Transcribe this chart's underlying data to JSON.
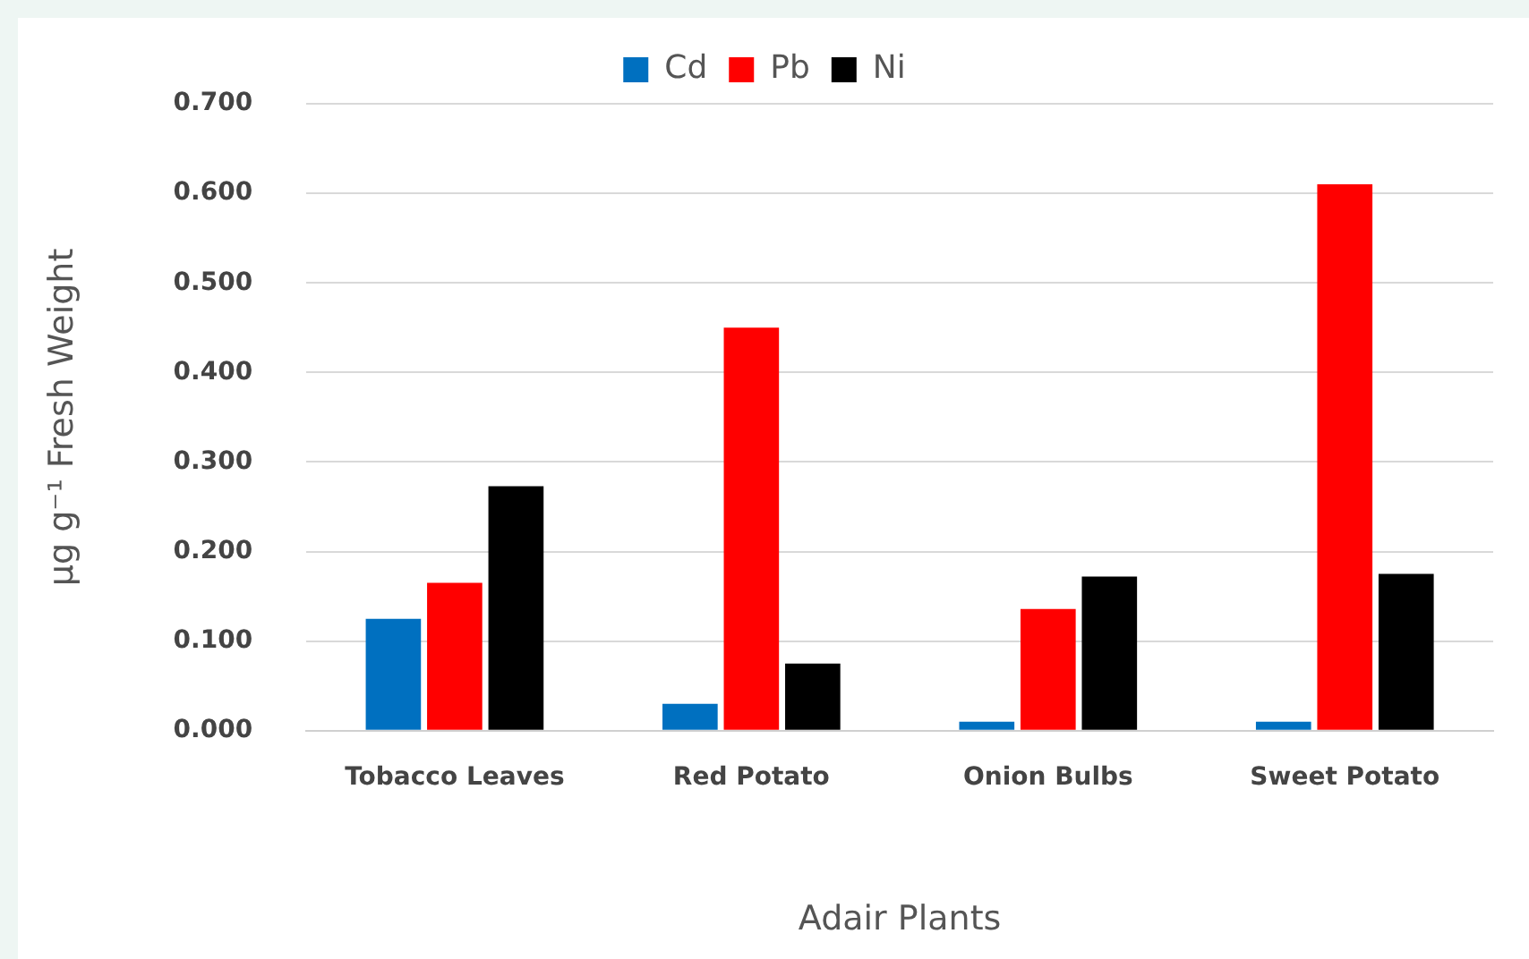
{
  "chart_data": {
    "type": "bar",
    "xlabel": "Adair Plants",
    "ylabel": "µg g⁻¹ Fresh Weight",
    "categories": [
      "Tobacco Leaves",
      "Red Potato",
      "Onion Bulbs",
      "Sweet Potato"
    ],
    "series": [
      {
        "name": "Cd",
        "color": "#0070c0",
        "values": [
          0.125,
          0.03,
          0.01,
          0.01
        ]
      },
      {
        "name": "Pb",
        "color": "#ff0000",
        "values": [
          0.165,
          0.45,
          0.136,
          0.61
        ]
      },
      {
        "name": "Ni",
        "color": "#000000",
        "values": [
          0.273,
          0.075,
          0.172,
          0.175
        ]
      }
    ],
    "ylim": [
      0,
      0.7
    ],
    "yticks": [
      {
        "value": 0,
        "label": "0.000"
      },
      {
        "value": 0.1,
        "label": "0.100"
      },
      {
        "value": 0.2,
        "label": "0.200"
      },
      {
        "value": 0.3,
        "label": "0.300"
      },
      {
        "value": 0.4,
        "label": "0.400"
      },
      {
        "value": 0.5,
        "label": "0.500"
      },
      {
        "value": 0.6,
        "label": "0.600"
      },
      {
        "value": 0.7,
        "label": "0.700"
      }
    ],
    "grid": "y",
    "legend": "top"
  }
}
